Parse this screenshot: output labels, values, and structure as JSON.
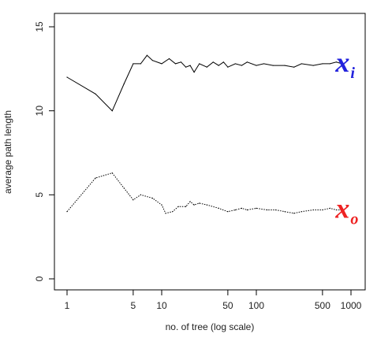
{
  "chart_data": {
    "type": "line",
    "title": "",
    "xlabel": "no. of tree (log scale)",
    "ylabel": "average path length",
    "x_scale": "log",
    "xlim": [
      1,
      1000
    ],
    "ylim": [
      0,
      15
    ],
    "grid": false,
    "x_ticks": [
      {
        "value": 1,
        "label": "1"
      },
      {
        "value": 5,
        "label": "5"
      },
      {
        "value": 10,
        "label": "10"
      },
      {
        "value": 50,
        "label": "50"
      },
      {
        "value": 100,
        "label": "100"
      },
      {
        "value": 500,
        "label": "500"
      },
      {
        "value": 1000,
        "label": "1000"
      }
    ],
    "y_ticks": [
      {
        "value": 0,
        "label": "0"
      },
      {
        "value": 5,
        "label": "5"
      },
      {
        "value": 10,
        "label": "10"
      },
      {
        "value": 15,
        "label": "15"
      }
    ],
    "series": [
      {
        "name": "x_i",
        "label_main": "x",
        "label_sub": "i",
        "color": "#000000",
        "label_color": "#2222dd",
        "dash": "solid",
        "points": [
          [
            1,
            12.0
          ],
          [
            2,
            11.0
          ],
          [
            3,
            10.0
          ],
          [
            4,
            11.6
          ],
          [
            5,
            12.8
          ],
          [
            6,
            12.8
          ],
          [
            7,
            13.3
          ],
          [
            8,
            13.0
          ],
          [
            10,
            12.8
          ],
          [
            12,
            13.1
          ],
          [
            14,
            12.8
          ],
          [
            16,
            12.9
          ],
          [
            18,
            12.6
          ],
          [
            20,
            12.7
          ],
          [
            22,
            12.3
          ],
          [
            25,
            12.8
          ],
          [
            30,
            12.6
          ],
          [
            35,
            12.9
          ],
          [
            40,
            12.7
          ],
          [
            45,
            12.9
          ],
          [
            50,
            12.6
          ],
          [
            60,
            12.8
          ],
          [
            70,
            12.7
          ],
          [
            80,
            12.9
          ],
          [
            100,
            12.7
          ],
          [
            120,
            12.8
          ],
          [
            150,
            12.7
          ],
          [
            200,
            12.7
          ],
          [
            250,
            12.6
          ],
          [
            300,
            12.8
          ],
          [
            400,
            12.7
          ],
          [
            500,
            12.8
          ],
          [
            600,
            12.8
          ],
          [
            700,
            12.9
          ],
          [
            800,
            12.8
          ]
        ]
      },
      {
        "name": "x_o",
        "label_main": "x",
        "label_sub": "o",
        "color": "#000000",
        "label_color": "#ee2222",
        "dash": "dotted",
        "points": [
          [
            1,
            4.0
          ],
          [
            2,
            6.0
          ],
          [
            3,
            6.3
          ],
          [
            4,
            5.4
          ],
          [
            5,
            4.7
          ],
          [
            6,
            5.0
          ],
          [
            8,
            4.8
          ],
          [
            10,
            4.4
          ],
          [
            11,
            3.9
          ],
          [
            13,
            4.0
          ],
          [
            15,
            4.3
          ],
          [
            18,
            4.3
          ],
          [
            20,
            4.6
          ],
          [
            22,
            4.4
          ],
          [
            25,
            4.5
          ],
          [
            30,
            4.4
          ],
          [
            40,
            4.2
          ],
          [
            50,
            4.0
          ],
          [
            60,
            4.1
          ],
          [
            70,
            4.2
          ],
          [
            80,
            4.1
          ],
          [
            100,
            4.2
          ],
          [
            130,
            4.1
          ],
          [
            160,
            4.1
          ],
          [
            200,
            4.0
          ],
          [
            250,
            3.9
          ],
          [
            300,
            4.0
          ],
          [
            400,
            4.1
          ],
          [
            500,
            4.1
          ],
          [
            600,
            4.2
          ],
          [
            700,
            4.1
          ],
          [
            800,
            4.1
          ]
        ]
      }
    ]
  }
}
